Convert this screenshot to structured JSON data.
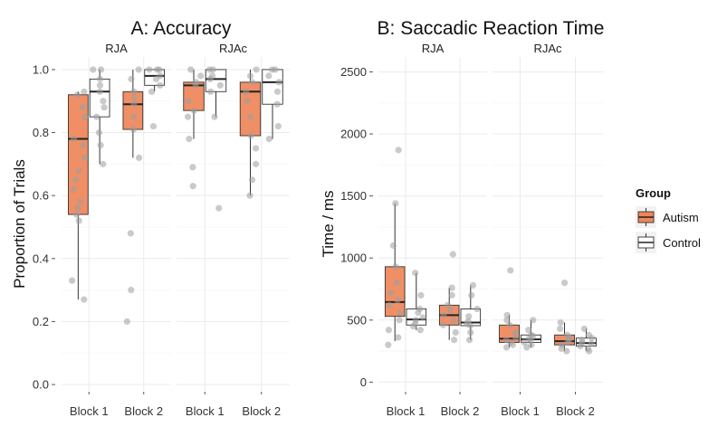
{
  "chart_data": [
    {
      "type": "box",
      "title": "A: Accuracy",
      "xlabel": "",
      "ylabel": "Proportion of Trials",
      "ylim": [
        -0.02,
        1.04
      ],
      "yticks": [
        0.0,
        0.2,
        0.4,
        0.6,
        0.8,
        1.0
      ],
      "ytick_labels": [
        "0.0",
        "0.2",
        "0.4",
        "0.6",
        "0.8",
        "1.0"
      ],
      "grid": true,
      "facets": [
        {
          "label": "RJA",
          "categories": [
            "Block 1",
            "Block 2"
          ],
          "boxes": [
            {
              "category": "Block 1",
              "group": "Autism",
              "q1": 0.54,
              "median": 0.78,
              "q3": 0.92,
              "whisker_low": 0.27,
              "whisker_high": 0.93,
              "points": [
                0.27,
                0.33,
                0.52,
                0.54,
                0.56,
                0.58,
                0.62,
                0.65,
                0.68,
                0.72,
                0.76,
                0.78,
                0.85,
                0.88,
                0.92,
                0.93
              ]
            },
            {
              "category": "Block 1",
              "group": "Control",
              "q1": 0.85,
              "median": 0.93,
              "q3": 0.97,
              "whisker_low": 0.7,
              "whisker_high": 1.0,
              "points": [
                0.7,
                0.76,
                0.8,
                0.85,
                0.88,
                0.9,
                0.93,
                0.95,
                0.97,
                1.0,
                1.0
              ]
            },
            {
              "category": "Block 2",
              "group": "Autism",
              "q1": 0.81,
              "median": 0.89,
              "q3": 0.93,
              "whisker_low": 0.72,
              "whisker_high": 1.0,
              "points": [
                0.2,
                0.3,
                0.48,
                0.72,
                0.81,
                0.85,
                0.89,
                0.91,
                0.93,
                0.97,
                1.0
              ]
            },
            {
              "category": "Block 2",
              "group": "Control",
              "q1": 0.95,
              "median": 0.98,
              "q3": 1.0,
              "whisker_low": 0.93,
              "whisker_high": 1.0,
              "points": [
                0.82,
                0.93,
                0.95,
                0.97,
                0.98,
                1.0,
                1.0,
                1.0
              ]
            }
          ]
        },
        {
          "label": "RJAc",
          "categories": [
            "Block 1",
            "Block 2"
          ],
          "boxes": [
            {
              "category": "Block 1",
              "group": "Autism",
              "q1": 0.87,
              "median": 0.95,
              "q3": 0.96,
              "whisker_low": 0.78,
              "whisker_high": 1.0,
              "points": [
                0.63,
                0.69,
                0.78,
                0.85,
                0.87,
                0.9,
                0.95,
                0.96,
                0.98,
                1.0
              ]
            },
            {
              "category": "Block 1",
              "group": "Control",
              "q1": 0.93,
              "median": 0.97,
              "q3": 1.0,
              "whisker_low": 0.85,
              "whisker_high": 1.0,
              "points": [
                0.56,
                0.85,
                0.93,
                0.95,
                0.97,
                0.98,
                1.0,
                1.0
              ]
            },
            {
              "category": "Block 2",
              "group": "Autism",
              "q1": 0.79,
              "median": 0.93,
              "q3": 0.96,
              "whisker_low": 0.6,
              "whisker_high": 1.0,
              "points": [
                0.6,
                0.65,
                0.7,
                0.75,
                0.79,
                0.85,
                0.9,
                0.93,
                0.96,
                0.98,
                1.0
              ]
            },
            {
              "category": "Block 2",
              "group": "Control",
              "q1": 0.89,
              "median": 0.96,
              "q3": 1.0,
              "whisker_low": 0.78,
              "whisker_high": 1.0,
              "points": [
                0.78,
                0.82,
                0.89,
                0.93,
                0.96,
                0.98,
                1.0,
                1.0
              ]
            }
          ]
        }
      ]
    },
    {
      "type": "box",
      "title": "B: Saccadic Reaction Time",
      "xlabel": "",
      "ylabel": "Time / ms",
      "ylim": [
        -70,
        2620
      ],
      "yticks": [
        0,
        500,
        1000,
        1500,
        2000,
        2500
      ],
      "ytick_labels": [
        "0",
        "500",
        "1000",
        "1500",
        "2000",
        "2500"
      ],
      "grid": true,
      "facets": [
        {
          "label": "RJA",
          "categories": [
            "Block 1",
            "Block 2"
          ],
          "boxes": [
            {
              "category": "Block 1",
              "group": "Autism",
              "q1": 530,
              "median": 645,
              "q3": 930,
              "whisker_low": 330,
              "whisker_high": 1440,
              "points": [
                300,
                360,
                420,
                500,
                560,
                620,
                660,
                720,
                800,
                930,
                1100,
                1440,
                1870
              ]
            },
            {
              "category": "Block 1",
              "group": "Control",
              "q1": 460,
              "median": 505,
              "q3": 590,
              "whisker_low": 420,
              "whisker_high": 880,
              "points": [
                420,
                450,
                470,
                500,
                520,
                560,
                590,
                700,
                880
              ]
            },
            {
              "category": "Block 2",
              "group": "Autism",
              "q1": 460,
              "median": 540,
              "q3": 620,
              "whisker_low": 340,
              "whisker_high": 760,
              "points": [
                340,
                400,
                460,
                500,
                540,
                580,
                620,
                700,
                760,
                1030
              ]
            },
            {
              "category": "Block 2",
              "group": "Control",
              "q1": 455,
              "median": 480,
              "q3": 590,
              "whisker_low": 340,
              "whisker_high": 780,
              "points": [
                340,
                400,
                455,
                470,
                490,
                530,
                590,
                700,
                780
              ]
            }
          ]
        },
        {
          "label": "RJAc",
          "categories": [
            "Block 1",
            "Block 2"
          ],
          "boxes": [
            {
              "category": "Block 1",
              "group": "Autism",
              "q1": 320,
              "median": 350,
              "q3": 460,
              "whisker_low": 280,
              "whisker_high": 540,
              "points": [
                280,
                300,
                320,
                340,
                360,
                400,
                460,
                500,
                540,
                900
              ]
            },
            {
              "category": "Block 1",
              "group": "Control",
              "q1": 320,
              "median": 345,
              "q3": 380,
              "whisker_low": 280,
              "whisker_high": 500,
              "points": [
                280,
                300,
                320,
                340,
                350,
                370,
                380,
                420,
                500
              ]
            },
            {
              "category": "Block 2",
              "group": "Autism",
              "q1": 300,
              "median": 330,
              "q3": 380,
              "whisker_low": 250,
              "whisker_high": 480,
              "points": [
                250,
                270,
                300,
                320,
                340,
                360,
                380,
                430,
                480,
                800
              ]
            },
            {
              "category": "Block 2",
              "group": "Control",
              "q1": 290,
              "median": 315,
              "q3": 355,
              "whisker_low": 250,
              "whisker_high": 430,
              "points": [
                250,
                270,
                290,
                310,
                320,
                340,
                355,
                380,
                430
              ]
            }
          ]
        }
      ]
    }
  ],
  "legend": {
    "title": "Group",
    "position": "right",
    "items": [
      {
        "label": "Autism",
        "fill": "#ef8558",
        "stroke": "#333333"
      },
      {
        "label": "Control",
        "fill": "#ffffff",
        "stroke": "#333333"
      }
    ]
  },
  "colors": {
    "autism": "#ef8558",
    "control": "#ffffff",
    "point": "#9e9e9e",
    "grid": "#ebebeb",
    "box_stroke": "#333333"
  }
}
